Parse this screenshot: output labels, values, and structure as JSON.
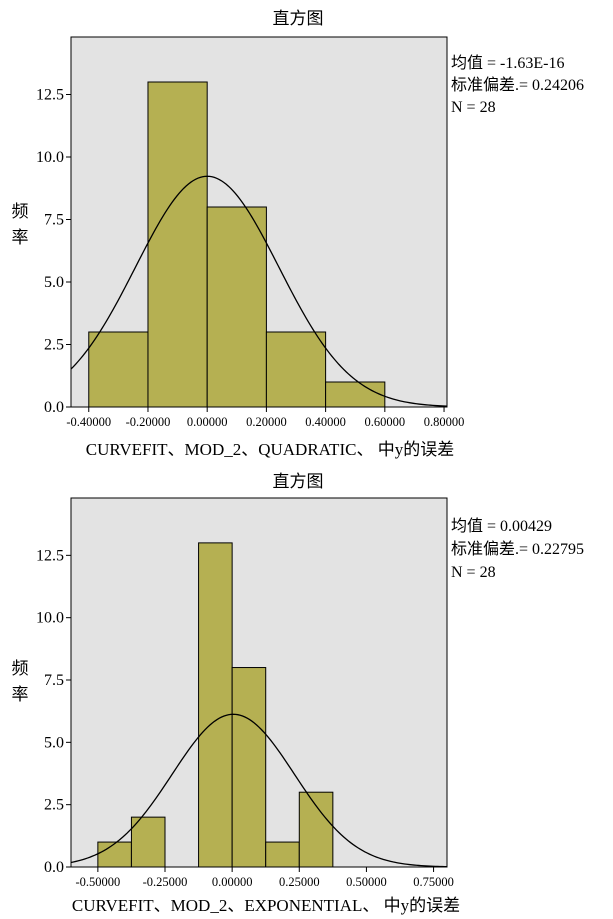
{
  "chart_data": [
    {
      "type": "bar",
      "subtype": "histogram-with-normal-curve",
      "title": "直方图",
      "xlabel": "CURVEFIT、MOD_2、QUADRATIC、 中y的误差",
      "ylabel": "频率",
      "ylim": [
        0,
        14.8
      ],
      "xlim": [
        -0.46,
        0.81
      ],
      "yticks": [
        "0.0",
        "2.5",
        "5.0",
        "7.5",
        "10.0",
        "12.5"
      ],
      "xticks": [
        "-0.40000",
        "-0.20000",
        "0.00000",
        "0.20000",
        "0.40000",
        "0.60000",
        "0.80000"
      ],
      "bins": [
        {
          "start": -0.4,
          "end": -0.2,
          "count": 3
        },
        {
          "start": -0.2,
          "end": 0.0,
          "count": 13
        },
        {
          "start": 0.0,
          "end": 0.2,
          "count": 8
        },
        {
          "start": 0.2,
          "end": 0.4,
          "count": 3
        },
        {
          "start": 0.4,
          "end": 0.6,
          "count": 1
        }
      ],
      "bin_width": 0.2,
      "curve": {
        "mean": 0.0,
        "sd": 0.24206,
        "n": 28
      },
      "stats": [
        "均值 = -1.63E-16",
        "标准偏差.= 0.24206",
        "N = 28"
      ],
      "colors": {
        "bar": "#b5b052",
        "background": "#e3e3e3"
      }
    },
    {
      "type": "bar",
      "subtype": "histogram-with-normal-curve",
      "title": "直方图",
      "xlabel": "CURVEFIT、MOD_2、EXPONENTIAL、 中y的误差",
      "ylabel": "频率",
      "ylim": [
        0,
        14.8
      ],
      "xlim": [
        -0.6,
        0.8
      ],
      "yticks": [
        "0.0",
        "2.5",
        "5.0",
        "7.5",
        "10.0",
        "12.5"
      ],
      "xticks": [
        "-0.50000",
        "-0.25000",
        "0.00000",
        "0.25000",
        "0.50000",
        "0.75000"
      ],
      "bins": [
        {
          "start": -0.5,
          "end": -0.375,
          "count": 1
        },
        {
          "start": -0.375,
          "end": -0.25,
          "count": 2
        },
        {
          "start": -0.125,
          "end": 0.0,
          "count": 13
        },
        {
          "start": 0.0,
          "end": 0.125,
          "count": 8
        },
        {
          "start": 0.125,
          "end": 0.25,
          "count": 1
        },
        {
          "start": 0.25,
          "end": 0.375,
          "count": 3
        }
      ],
      "bin_width": 0.125,
      "curve": {
        "mean": 0.00429,
        "sd": 0.22795,
        "n": 28
      },
      "stats": [
        "均值 = 0.00429",
        "标准偏差.= 0.22795",
        "N = 28"
      ],
      "colors": {
        "bar": "#b5b052",
        "background": "#e3e3e3"
      }
    }
  ]
}
